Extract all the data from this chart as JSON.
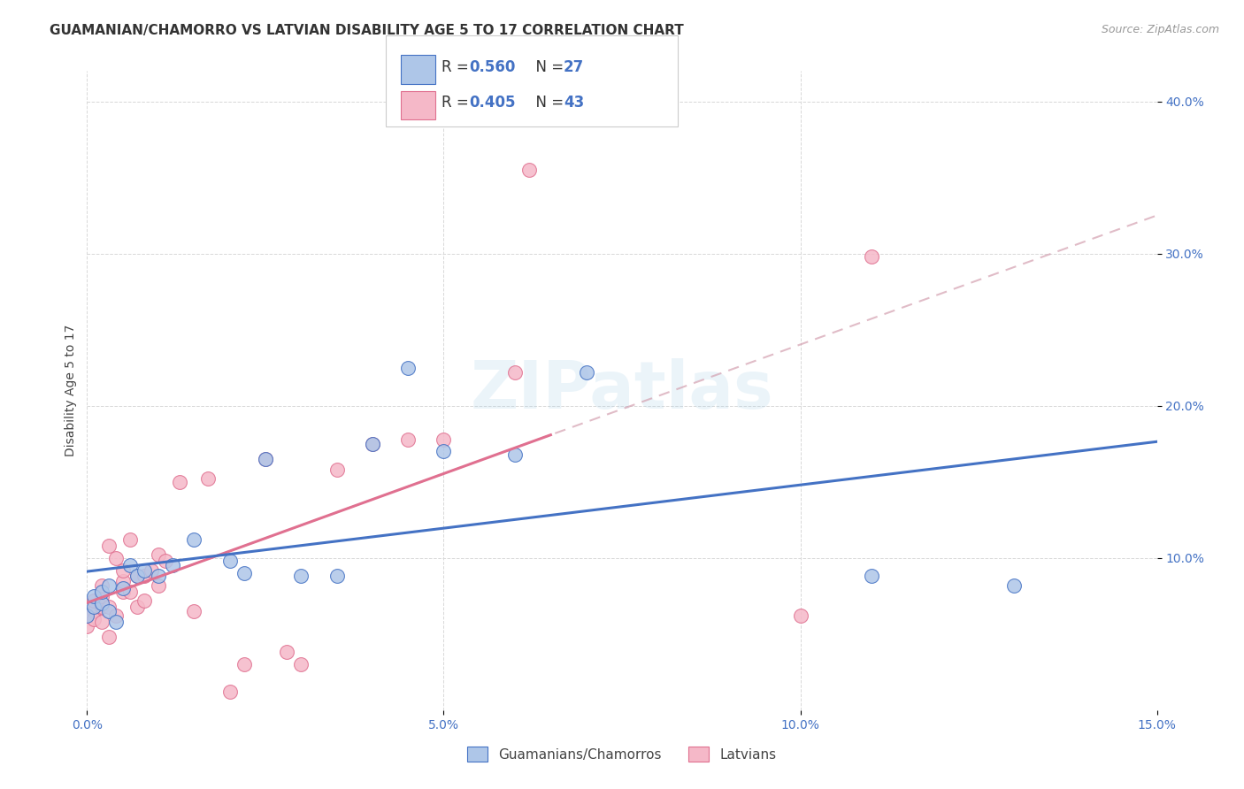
{
  "title": "GUAMANIAN/CHAMORRO VS LATVIAN DISABILITY AGE 5 TO 17 CORRELATION CHART",
  "source": "Source: ZipAtlas.com",
  "ylabel": "Disability Age 5 to 17",
  "xlim": [
    0.0,
    0.15
  ],
  "ylim": [
    0.0,
    0.42
  ],
  "xticks": [
    0.0,
    0.05,
    0.1,
    0.15
  ],
  "yticks": [
    0.1,
    0.2,
    0.3,
    0.4
  ],
  "xticklabels": [
    "0.0%",
    "5.0%",
    "10.0%",
    "15.0%"
  ],
  "yticklabels": [
    "10.0%",
    "20.0%",
    "30.0%",
    "40.0%"
  ],
  "guam_R": 0.56,
  "guam_N": 27,
  "latv_R": 0.405,
  "latv_N": 43,
  "guam_color": "#aec6e8",
  "latv_color": "#f5b8c8",
  "guam_line_color": "#4472c4",
  "latv_line_color": "#e07090",
  "latv_dash_color": "#d4a0b0",
  "legend_label_guam": "Guamanians/Chamorros",
  "legend_label_latv": "Latvians",
  "guam_x": [
    0.0,
    0.001,
    0.001,
    0.002,
    0.002,
    0.003,
    0.003,
    0.004,
    0.005,
    0.006,
    0.007,
    0.008,
    0.01,
    0.012,
    0.015,
    0.02,
    0.022,
    0.025,
    0.03,
    0.035,
    0.04,
    0.045,
    0.05,
    0.06,
    0.07,
    0.11,
    0.13
  ],
  "guam_y": [
    0.062,
    0.068,
    0.075,
    0.07,
    0.078,
    0.065,
    0.082,
    0.058,
    0.08,
    0.095,
    0.088,
    0.092,
    0.088,
    0.095,
    0.112,
    0.098,
    0.09,
    0.165,
    0.088,
    0.088,
    0.175,
    0.225,
    0.17,
    0.168,
    0.222,
    0.088,
    0.082
  ],
  "latv_x": [
    0.0,
    0.0,
    0.001,
    0.001,
    0.001,
    0.002,
    0.002,
    0.002,
    0.002,
    0.003,
    0.003,
    0.003,
    0.004,
    0.004,
    0.005,
    0.005,
    0.005,
    0.006,
    0.006,
    0.007,
    0.007,
    0.008,
    0.008,
    0.009,
    0.01,
    0.01,
    0.011,
    0.013,
    0.015,
    0.017,
    0.02,
    0.022,
    0.025,
    0.028,
    0.03,
    0.035,
    0.04,
    0.045,
    0.05,
    0.06,
    0.062,
    0.1,
    0.11
  ],
  "latv_y": [
    0.055,
    0.062,
    0.065,
    0.072,
    0.06,
    0.058,
    0.068,
    0.075,
    0.082,
    0.048,
    0.068,
    0.108,
    0.062,
    0.1,
    0.078,
    0.085,
    0.092,
    0.078,
    0.112,
    0.068,
    0.088,
    0.072,
    0.088,
    0.092,
    0.102,
    0.082,
    0.098,
    0.15,
    0.065,
    0.152,
    0.012,
    0.03,
    0.165,
    0.038,
    0.03,
    0.158,
    0.175,
    0.178,
    0.178,
    0.222,
    0.355,
    0.062,
    0.298
  ],
  "background_color": "#ffffff",
  "grid_color": "#d8d8d8",
  "title_fontsize": 11,
  "axis_label_fontsize": 10,
  "tick_fontsize": 10,
  "legend_fontsize": 11
}
